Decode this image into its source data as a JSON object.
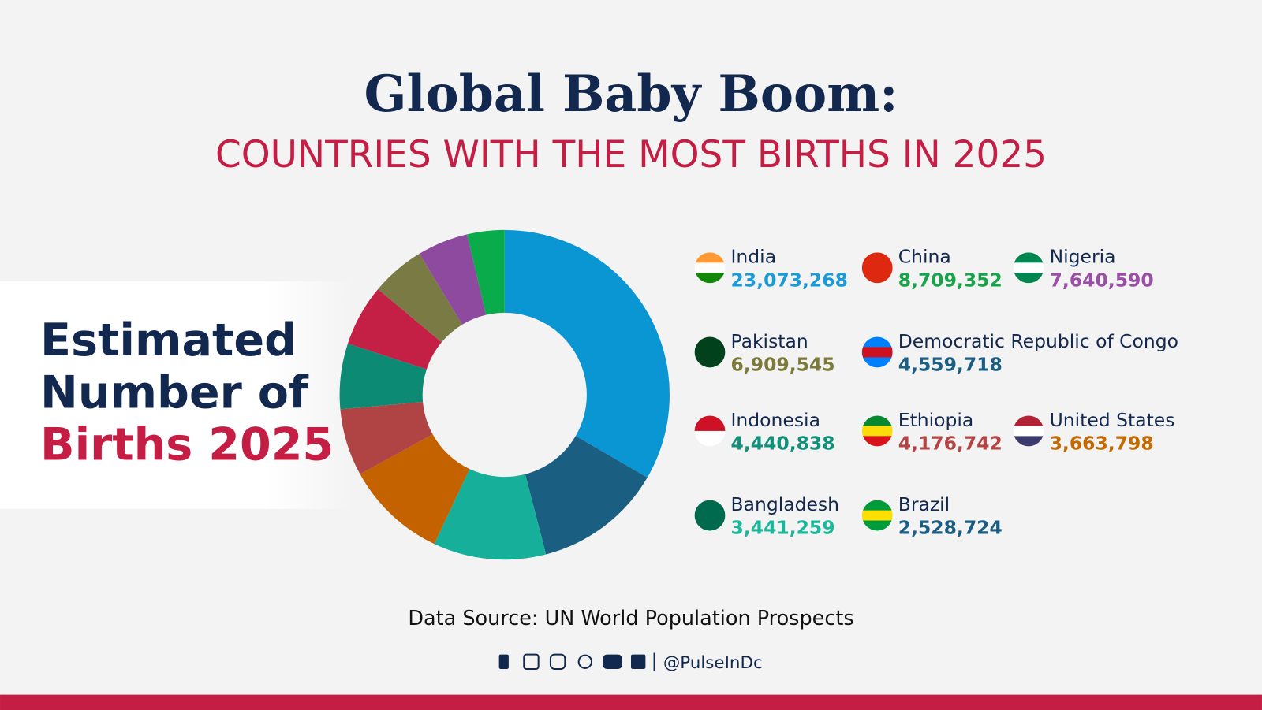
{
  "chart_data": {
    "type": "donut",
    "title": "Global Baby Boom:",
    "subtitle": "COUNTRIES WITH THE MOST BIRTHS IN 2025",
    "side_label": {
      "line1": "Estimated",
      "line2": "Number of",
      "line3": "Births 2025"
    },
    "categories": [
      "India",
      "China",
      "Nigeria",
      "Pakistan",
      "Democratic Republic of Congo",
      "Indonesia",
      "Ethiopia",
      "United States",
      "Bangladesh",
      "Brazil"
    ],
    "values": [
      23073268,
      8709352,
      7640590,
      6909545,
      4559718,
      4440838,
      4176742,
      3663798,
      3441259,
      2528724
    ],
    "value_labels": [
      "23,073,268",
      "8,709,352",
      "7,640,590",
      "6,909,545",
      "4,559,718",
      "4,440,838",
      "4,176,742",
      "3,663,798",
      "3,441,259",
      "2,528,724"
    ],
    "colors": [
      "#0a95d3",
      "#1a5f82",
      "#16b09a",
      "#c46200",
      "#b04444",
      "#0d8a74",
      "#c42046",
      "#7a7a45",
      "#8e4a9e",
      "#0aab4a"
    ],
    "label_colors": [
      "#1a9ad6",
      "#16a34a",
      "#9b4ea6",
      "#7c7a3a",
      "#1b5e82",
      "#12917a",
      "#b54444",
      "#c46a00",
      "#1ab89a",
      "#1b5e82"
    ],
    "source": "Data Source: UN World Population Prospects",
    "handle": "@PulseInDc"
  }
}
